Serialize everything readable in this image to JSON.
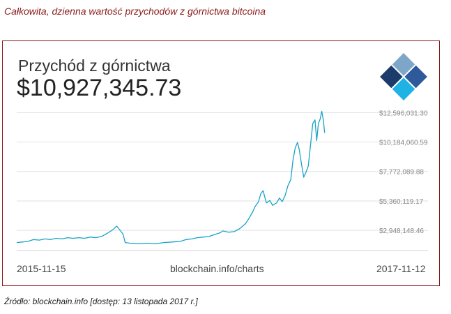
{
  "caption": "Całkowita, dzienna wartość przychodów z górnictwa bitcoina",
  "source": "Źródło: blockchain.info [dostęp: 13 listopada 2017 r.]",
  "chart_data": {
    "type": "line",
    "title": "Przychód z górnictwa",
    "current_value": "$10,927,345.73",
    "x_start_label": "2015-11-15",
    "x_end_label": "2017-11-12",
    "site_label": "blockchain.info/charts",
    "y_ticks": [
      {
        "value": 12596031.3,
        "label": "$12,596,031.30"
      },
      {
        "value": 10184060.59,
        "label": "$10,184,060.59"
      },
      {
        "value": 7772089.88,
        "label": "$7,772,089.88"
      },
      {
        "value": 5360119.17,
        "label": "$5,360,119.17"
      },
      {
        "value": 2948148.46,
        "label": "$2,948,148.46"
      }
    ],
    "ylim": [
      1300000,
      12900000
    ],
    "x_days": 728,
    "grid": true,
    "line_color": "#1aa3c7",
    "series": [
      {
        "points": [
          [
            0,
            1950000
          ],
          [
            10,
            2000000
          ],
          [
            20,
            2050000
          ],
          [
            30,
            2200000
          ],
          [
            40,
            2150000
          ],
          [
            50,
            2250000
          ],
          [
            60,
            2200000
          ],
          [
            70,
            2300000
          ],
          [
            80,
            2250000
          ],
          [
            90,
            2350000
          ],
          [
            100,
            2300000
          ],
          [
            110,
            2350000
          ],
          [
            120,
            2300000
          ],
          [
            130,
            2400000
          ],
          [
            140,
            2350000
          ],
          [
            150,
            2450000
          ],
          [
            160,
            2700000
          ],
          [
            170,
            3000000
          ],
          [
            177,
            3300000
          ],
          [
            183,
            2950000
          ],
          [
            188,
            2650000
          ],
          [
            192,
            1950000
          ],
          [
            200,
            1900000
          ],
          [
            215,
            1850000
          ],
          [
            230,
            1900000
          ],
          [
            245,
            1850000
          ],
          [
            260,
            1950000
          ],
          [
            275,
            2000000
          ],
          [
            290,
            2050000
          ],
          [
            300,
            2200000
          ],
          [
            310,
            2250000
          ],
          [
            320,
            2350000
          ],
          [
            330,
            2400000
          ],
          [
            340,
            2450000
          ],
          [
            350,
            2600000
          ],
          [
            360,
            2750000
          ],
          [
            365,
            2900000
          ],
          [
            375,
            2800000
          ],
          [
            385,
            2850000
          ],
          [
            395,
            3100000
          ],
          [
            405,
            3500000
          ],
          [
            412,
            4000000
          ],
          [
            418,
            4500000
          ],
          [
            422,
            4900000
          ],
          [
            428,
            5300000
          ],
          [
            432,
            5950000
          ],
          [
            436,
            6200000
          ],
          [
            442,
            5200000
          ],
          [
            448,
            5400000
          ],
          [
            453,
            5000000
          ],
          [
            460,
            5200000
          ],
          [
            465,
            5600000
          ],
          [
            470,
            5300000
          ],
          [
            475,
            5800000
          ],
          [
            480,
            6600000
          ],
          [
            485,
            7100000
          ],
          [
            489,
            8700000
          ],
          [
            493,
            9700000
          ],
          [
            497,
            10150000
          ],
          [
            500,
            9600000
          ],
          [
            504,
            8400000
          ],
          [
            508,
            7300000
          ],
          [
            512,
            7700000
          ],
          [
            516,
            8200000
          ],
          [
            520,
            9900000
          ],
          [
            524,
            11700000
          ],
          [
            528,
            12000000
          ],
          [
            531,
            10300000
          ],
          [
            534,
            11700000
          ],
          [
            537,
            12050000
          ],
          [
            540,
            12700000
          ],
          [
            543,
            11900000
          ],
          [
            545,
            10930000
          ]
        ]
      }
    ]
  }
}
